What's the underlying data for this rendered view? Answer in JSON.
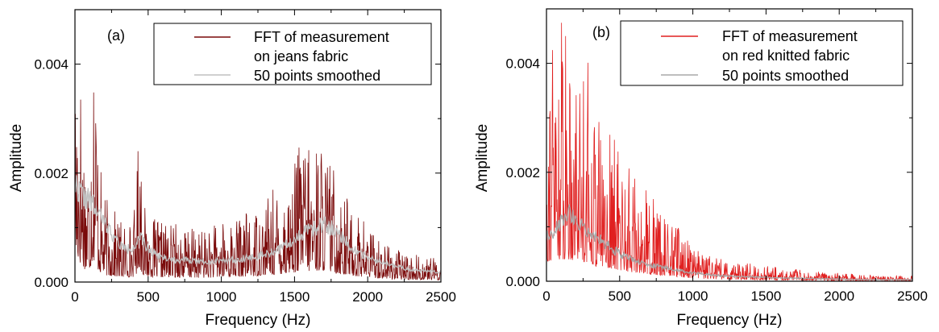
{
  "chart_data": [
    {
      "type": "line",
      "panel_label": "(a)",
      "xlabel": "Frequency (Hz)",
      "ylabel": "Amplitude",
      "xlim": [
        0,
        2500
      ],
      "ylim": [
        0,
        0.005
      ],
      "x_ticks": [
        "0",
        "500",
        "1000",
        "1500",
        "2000",
        "2500"
      ],
      "x_tick_values": [
        0,
        500,
        1000,
        1500,
        2000,
        2500
      ],
      "y_ticks": [
        "0.000",
        "0.002",
        "0.004"
      ],
      "y_tick_values": [
        0,
        0.002,
        0.004
      ],
      "grid": false,
      "legend_position": "top-right",
      "legend": [
        "FFT of measurement\non jeans fabric",
        "50 points smoothed"
      ],
      "series": [
        {
          "name": "FFT of measurement on jeans fabric",
          "color": "#7a0a0a",
          "style": "noisy spectrum",
          "envelope_x": [
            0,
            20,
            40,
            60,
            80,
            100,
            120,
            140,
            160,
            180,
            200,
            250,
            300,
            350,
            400,
            420,
            440,
            460,
            480,
            500,
            600,
            700,
            800,
            900,
            1000,
            1100,
            1200,
            1300,
            1400,
            1500,
            1550,
            1600,
            1650,
            1700,
            1750,
            1800,
            1900,
            2000,
            2100,
            2200,
            2300,
            2400,
            2500
          ],
          "envelope_y": [
            0.0045,
            0.005,
            0.0042,
            0.0032,
            0.0025,
            0.0028,
            0.0048,
            0.005,
            0.0026,
            0.002,
            0.0016,
            0.0014,
            0.0012,
            0.0011,
            0.0012,
            0.0019,
            0.0035,
            0.002,
            0.0013,
            0.0012,
            0.0011,
            0.0011,
            0.001,
            0.001,
            0.0011,
            0.0012,
            0.0013,
            0.0016,
            0.0018,
            0.0022,
            0.0028,
            0.0025,
            0.0026,
            0.0027,
            0.0023,
            0.0019,
            0.0014,
            0.0011,
            0.0008,
            0.0006,
            0.0005,
            0.0005,
            0.0004
          ]
        },
        {
          "name": "50 points smoothed",
          "color": "#c0c0c0",
          "x": [
            0,
            50,
            100,
            150,
            200,
            250,
            300,
            350,
            400,
            450,
            500,
            600,
            700,
            800,
            900,
            1000,
            1100,
            1200,
            1300,
            1400,
            1500,
            1600,
            1650,
            1700,
            1750,
            1800,
            1900,
            2000,
            2100,
            2200,
            2300,
            2400,
            2500
          ],
          "y": [
            0.0018,
            0.0016,
            0.0015,
            0.0013,
            0.0011,
            0.0009,
            0.0007,
            0.0006,
            0.00065,
            0.0008,
            0.0006,
            0.00045,
            0.0004,
            0.0004,
            0.00038,
            0.0004,
            0.00042,
            0.00045,
            0.0005,
            0.0006,
            0.0008,
            0.00095,
            0.001,
            0.00105,
            0.001,
            0.0009,
            0.0006,
            0.00045,
            0.00035,
            0.00028,
            0.00022,
            0.0002,
            0.00018
          ]
        }
      ]
    },
    {
      "type": "line",
      "panel_label": "(b)",
      "xlabel": "Frequency (Hz)",
      "ylabel": "Amplitude",
      "xlim": [
        0,
        2500
      ],
      "ylim": [
        0,
        0.005
      ],
      "x_ticks": [
        "0",
        "500",
        "1000",
        "1500",
        "2000",
        "2500"
      ],
      "x_tick_values": [
        0,
        500,
        1000,
        1500,
        2000,
        2500
      ],
      "y_ticks": [
        "0.000",
        "0.002",
        "0.004"
      ],
      "y_tick_values": [
        0,
        0.002,
        0.004
      ],
      "grid": false,
      "legend_position": "top-right",
      "legend": [
        "FFT of measurement\non red knitted fabric",
        "50 points smoothed"
      ],
      "series": [
        {
          "name": "FFT of measurement on red knitted fabric",
          "color": "#e02020",
          "style": "noisy spectrum",
          "envelope_x": [
            0,
            50,
            100,
            150,
            200,
            250,
            300,
            350,
            400,
            450,
            500,
            600,
            700,
            800,
            900,
            1000,
            1100,
            1200,
            1400,
            1600,
            1800,
            2000,
            2200,
            2500
          ],
          "envelope_y": [
            0.0045,
            0.005,
            0.005,
            0.005,
            0.0048,
            0.0045,
            0.0042,
            0.0032,
            0.003,
            0.0028,
            0.0025,
            0.002,
            0.0016,
            0.0013,
            0.001,
            0.0007,
            0.0005,
            0.0004,
            0.00032,
            0.00025,
            0.0002,
            0.00015,
            0.00012,
            0.0001
          ]
        },
        {
          "name": "50 points smoothed",
          "color": "#a8a8a8",
          "x": [
            0,
            50,
            100,
            150,
            200,
            250,
            300,
            350,
            400,
            450,
            500,
            600,
            700,
            800,
            900,
            1000,
            1200,
            1400,
            1600,
            1800,
            2000,
            2200,
            2500
          ],
          "y": [
            0.0008,
            0.0009,
            0.0011,
            0.00125,
            0.00115,
            0.001,
            0.0009,
            0.0008,
            0.0007,
            0.0006,
            0.0005,
            0.0004,
            0.0003,
            0.00025,
            0.0002,
            0.00015,
            0.0001,
            8e-05,
            6e-05,
            5e-05,
            4e-05,
            3e-05,
            3e-05
          ]
        }
      ]
    }
  ]
}
